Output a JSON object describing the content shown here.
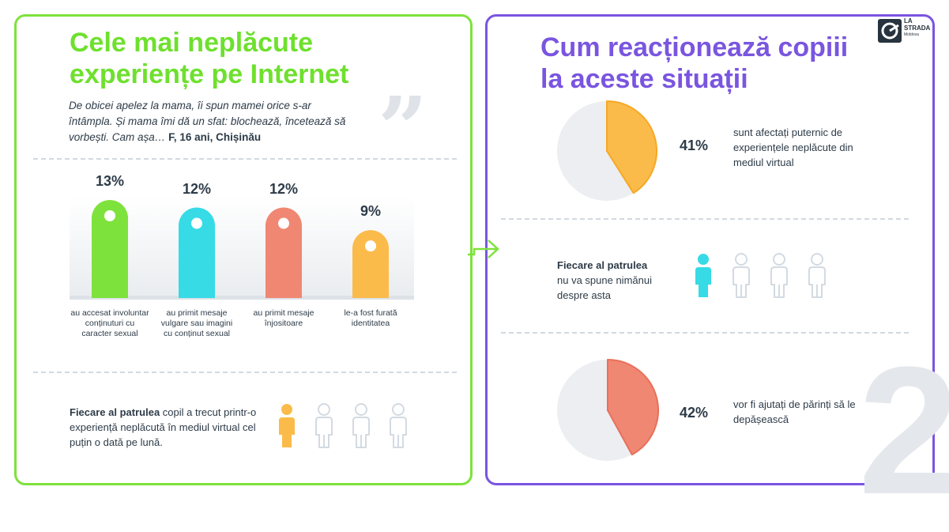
{
  "left": {
    "title": "Cele mai neplăcute experiențe pe Internet",
    "quote": "De obicei apelez la mama, îi spun mamei orice s-ar întâmpla. Și mama îmi dă un sfat: blochează, încetează să vorbești. Cam așa…",
    "quote_author": "F, 16 ani, Chișinău",
    "quote_mark": "”",
    "stat_bold": "Fiecare al patrulea",
    "stat_rest": " copil a trecut printr-o experiență neplăcută în mediul virtual cel puțin o dată pe lună."
  },
  "right": {
    "title": "Cum reacționează copiii la aceste situații",
    "stat1_pct": "41%",
    "stat1_text": "sunt afectați puternic de experiențele neplăcute din mediul virtual",
    "stat2_bold": "Fiecare al patrulea",
    "stat2_rest": "nu va spune nimănui despre asta",
    "stat3_pct": "42%",
    "stat3_text": "vor fi ajutați de părinți să le depășească"
  },
  "logo": {
    "line1": "LA",
    "line2": "STRADA",
    "line3": "Moldova"
  },
  "page_number": "2",
  "colors": {
    "green": "#7ee23c",
    "purple": "#7a55e0",
    "cyan": "#36dbe6",
    "salmon": "#f08772",
    "orange": "#fbbb4a",
    "gray": "#eceef1",
    "person_outline": "#d3dae1"
  },
  "chart_data": [
    {
      "type": "bar",
      "categories": [
        "au accesat involuntar conținuturi cu caracter sexual",
        "au primit mesaje vulgare sau imagini cu conținut sexual",
        "au primit mesaje înjositoare",
        "le-a fost furată identitatea"
      ],
      "values": [
        13,
        12,
        12,
        9
      ],
      "value_labels": [
        "13%",
        "12%",
        "12%",
        "9%"
      ],
      "colors": [
        "#7ee23c",
        "#36dbe6",
        "#f08772",
        "#fbbb4a"
      ],
      "ylim": [
        0,
        13
      ]
    },
    {
      "type": "pie",
      "values": [
        41,
        59
      ],
      "colors": [
        "#fbbb4a",
        "#eceef1"
      ],
      "label": "41%"
    },
    {
      "type": "pie",
      "values": [
        42,
        58
      ],
      "colors": [
        "#f08772",
        "#eceef1"
      ],
      "label": "42%"
    }
  ],
  "people_left": {
    "highlighted": 1,
    "total": 4,
    "color": "#fbbb4a"
  },
  "people_right": {
    "highlighted": 1,
    "total": 4,
    "color": "#36dbe6"
  }
}
